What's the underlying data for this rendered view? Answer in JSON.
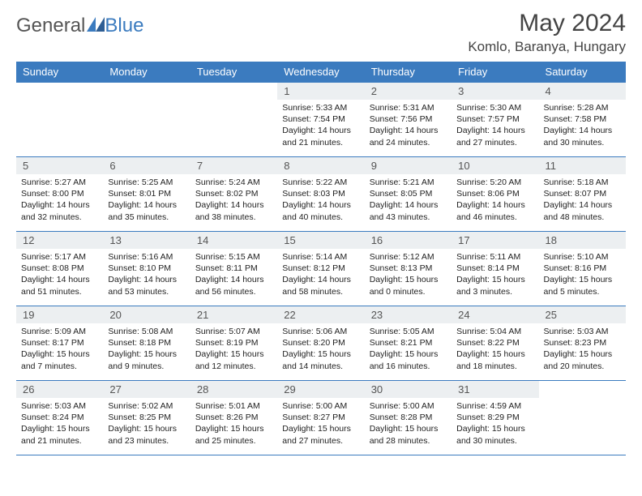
{
  "brand": {
    "part1": "General",
    "part2": "Blue"
  },
  "title": "May 2024",
  "location": "Komlo, Baranya, Hungary",
  "colors": {
    "header_bg": "#3b7bbf",
    "header_text": "#ffffff",
    "daynum_bg": "#eceff1",
    "border": "#3b7bbf",
    "body_text": "#222222",
    "title_text": "#444444"
  },
  "days_of_week": [
    "Sunday",
    "Monday",
    "Tuesday",
    "Wednesday",
    "Thursday",
    "Friday",
    "Saturday"
  ],
  "weeks": [
    [
      {
        "n": "",
        "empty": true
      },
      {
        "n": "",
        "empty": true
      },
      {
        "n": "",
        "empty": true
      },
      {
        "n": "1",
        "sunrise": "5:33 AM",
        "sunset": "7:54 PM",
        "dl1": "14 hours",
        "dl2": "and 21 minutes."
      },
      {
        "n": "2",
        "sunrise": "5:31 AM",
        "sunset": "7:56 PM",
        "dl1": "14 hours",
        "dl2": "and 24 minutes."
      },
      {
        "n": "3",
        "sunrise": "5:30 AM",
        "sunset": "7:57 PM",
        "dl1": "14 hours",
        "dl2": "and 27 minutes."
      },
      {
        "n": "4",
        "sunrise": "5:28 AM",
        "sunset": "7:58 PM",
        "dl1": "14 hours",
        "dl2": "and 30 minutes."
      }
    ],
    [
      {
        "n": "5",
        "sunrise": "5:27 AM",
        "sunset": "8:00 PM",
        "dl1": "14 hours",
        "dl2": "and 32 minutes."
      },
      {
        "n": "6",
        "sunrise": "5:25 AM",
        "sunset": "8:01 PM",
        "dl1": "14 hours",
        "dl2": "and 35 minutes."
      },
      {
        "n": "7",
        "sunrise": "5:24 AM",
        "sunset": "8:02 PM",
        "dl1": "14 hours",
        "dl2": "and 38 minutes."
      },
      {
        "n": "8",
        "sunrise": "5:22 AM",
        "sunset": "8:03 PM",
        "dl1": "14 hours",
        "dl2": "and 40 minutes."
      },
      {
        "n": "9",
        "sunrise": "5:21 AM",
        "sunset": "8:05 PM",
        "dl1": "14 hours",
        "dl2": "and 43 minutes."
      },
      {
        "n": "10",
        "sunrise": "5:20 AM",
        "sunset": "8:06 PM",
        "dl1": "14 hours",
        "dl2": "and 46 minutes."
      },
      {
        "n": "11",
        "sunrise": "5:18 AM",
        "sunset": "8:07 PM",
        "dl1": "14 hours",
        "dl2": "and 48 minutes."
      }
    ],
    [
      {
        "n": "12",
        "sunrise": "5:17 AM",
        "sunset": "8:08 PM",
        "dl1": "14 hours",
        "dl2": "and 51 minutes."
      },
      {
        "n": "13",
        "sunrise": "5:16 AM",
        "sunset": "8:10 PM",
        "dl1": "14 hours",
        "dl2": "and 53 minutes."
      },
      {
        "n": "14",
        "sunrise": "5:15 AM",
        "sunset": "8:11 PM",
        "dl1": "14 hours",
        "dl2": "and 56 minutes."
      },
      {
        "n": "15",
        "sunrise": "5:14 AM",
        "sunset": "8:12 PM",
        "dl1": "14 hours",
        "dl2": "and 58 minutes."
      },
      {
        "n": "16",
        "sunrise": "5:12 AM",
        "sunset": "8:13 PM",
        "dl1": "15 hours",
        "dl2": "and 0 minutes."
      },
      {
        "n": "17",
        "sunrise": "5:11 AM",
        "sunset": "8:14 PM",
        "dl1": "15 hours",
        "dl2": "and 3 minutes."
      },
      {
        "n": "18",
        "sunrise": "5:10 AM",
        "sunset": "8:16 PM",
        "dl1": "15 hours",
        "dl2": "and 5 minutes."
      }
    ],
    [
      {
        "n": "19",
        "sunrise": "5:09 AM",
        "sunset": "8:17 PM",
        "dl1": "15 hours",
        "dl2": "and 7 minutes."
      },
      {
        "n": "20",
        "sunrise": "5:08 AM",
        "sunset": "8:18 PM",
        "dl1": "15 hours",
        "dl2": "and 9 minutes."
      },
      {
        "n": "21",
        "sunrise": "5:07 AM",
        "sunset": "8:19 PM",
        "dl1": "15 hours",
        "dl2": "and 12 minutes."
      },
      {
        "n": "22",
        "sunrise": "5:06 AM",
        "sunset": "8:20 PM",
        "dl1": "15 hours",
        "dl2": "and 14 minutes."
      },
      {
        "n": "23",
        "sunrise": "5:05 AM",
        "sunset": "8:21 PM",
        "dl1": "15 hours",
        "dl2": "and 16 minutes."
      },
      {
        "n": "24",
        "sunrise": "5:04 AM",
        "sunset": "8:22 PM",
        "dl1": "15 hours",
        "dl2": "and 18 minutes."
      },
      {
        "n": "25",
        "sunrise": "5:03 AM",
        "sunset": "8:23 PM",
        "dl1": "15 hours",
        "dl2": "and 20 minutes."
      }
    ],
    [
      {
        "n": "26",
        "sunrise": "5:03 AM",
        "sunset": "8:24 PM",
        "dl1": "15 hours",
        "dl2": "and 21 minutes."
      },
      {
        "n": "27",
        "sunrise": "5:02 AM",
        "sunset": "8:25 PM",
        "dl1": "15 hours",
        "dl2": "and 23 minutes."
      },
      {
        "n": "28",
        "sunrise": "5:01 AM",
        "sunset": "8:26 PM",
        "dl1": "15 hours",
        "dl2": "and 25 minutes."
      },
      {
        "n": "29",
        "sunrise": "5:00 AM",
        "sunset": "8:27 PM",
        "dl1": "15 hours",
        "dl2": "and 27 minutes."
      },
      {
        "n": "30",
        "sunrise": "5:00 AM",
        "sunset": "8:28 PM",
        "dl1": "15 hours",
        "dl2": "and 28 minutes."
      },
      {
        "n": "31",
        "sunrise": "4:59 AM",
        "sunset": "8:29 PM",
        "dl1": "15 hours",
        "dl2": "and 30 minutes."
      },
      {
        "n": "",
        "empty": true
      }
    ]
  ],
  "labels": {
    "sunrise": "Sunrise:",
    "sunset": "Sunset:",
    "daylight": "Daylight:"
  }
}
